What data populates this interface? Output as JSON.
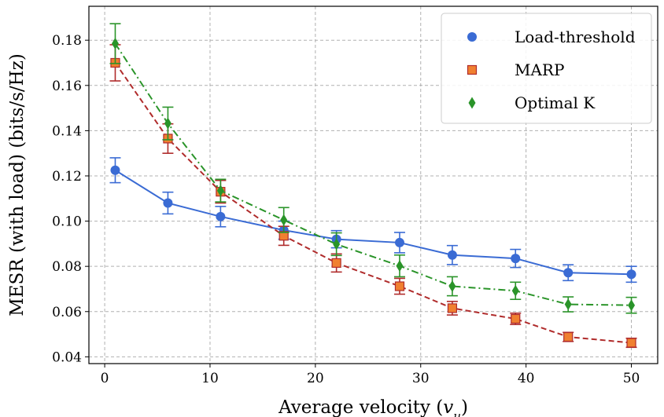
{
  "chart_data": {
    "type": "line",
    "xlabel": "Average velocity (v_u)",
    "xlabel_main": "Average velocity (",
    "xlabel_var": "v",
    "xlabel_sub": "u",
    "xlabel_close": ")",
    "ylabel": "MESR (with load) (bits/s/Hz)",
    "xlim": [
      -1.5,
      52.5
    ],
    "ylim": [
      0.037,
      0.195
    ],
    "xticks": [
      0,
      10,
      20,
      30,
      40,
      50
    ],
    "yticks": [
      0.04,
      0.06,
      0.08,
      0.1,
      0.12,
      0.14,
      0.16,
      0.18
    ],
    "ytick_labels": [
      "0.04",
      "0.06",
      "0.08",
      "0.10",
      "0.12",
      "0.14",
      "0.16",
      "0.18"
    ],
    "grid": true,
    "legend_position": "top-right",
    "x": [
      1,
      6,
      11,
      17,
      22,
      28,
      33,
      39,
      44,
      50
    ],
    "series": [
      {
        "name": "Load-threshold",
        "color": "#3a6bd4",
        "marker": "circle",
        "linestyle": "solid",
        "values": [
          0.1225,
          0.108,
          0.102,
          0.096,
          0.092,
          0.0905,
          0.085,
          0.0835,
          0.0772,
          0.0765
        ],
        "errors": [
          0.0055,
          0.0048,
          0.0045,
          0.004,
          0.0038,
          0.0045,
          0.0042,
          0.004,
          0.0035,
          0.0035
        ]
      },
      {
        "name": "MARP",
        "color": "#b02c2c",
        "marker_fill": "#f08030",
        "marker": "square",
        "linestyle": "dashed",
        "values": [
          0.17,
          0.1365,
          0.113,
          0.0935,
          0.0815,
          0.0712,
          0.0615,
          0.0568,
          0.0488,
          0.0462
        ],
        "errors": [
          0.008,
          0.0065,
          0.005,
          0.0042,
          0.004,
          0.0035,
          0.003,
          0.0025,
          0.002,
          0.002
        ]
      },
      {
        "name": "Optimal K",
        "color": "#2a9429",
        "marker": "diamond",
        "linestyle": "dashdot",
        "values": [
          0.1785,
          0.1432,
          0.1135,
          0.1005,
          0.0898,
          0.0802,
          0.0712,
          0.0692,
          0.0632,
          0.0628
        ],
        "errors": [
          0.0088,
          0.0072,
          0.005,
          0.0055,
          0.005,
          0.0048,
          0.0042,
          0.0038,
          0.0033,
          0.0035
        ]
      }
    ]
  }
}
